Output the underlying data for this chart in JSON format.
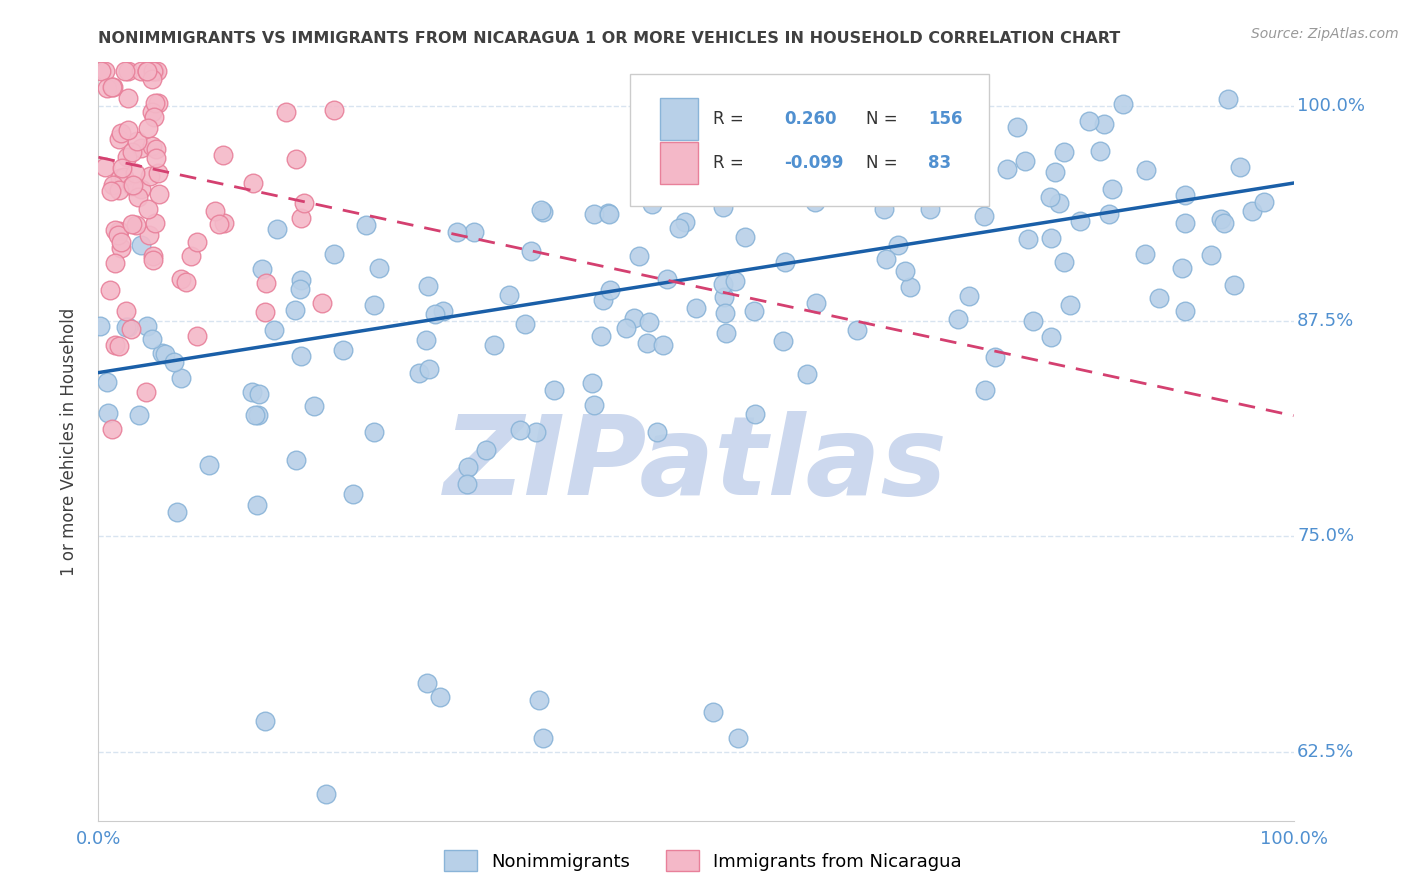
{
  "title": "NONIMMIGRANTS VS IMMIGRANTS FROM NICARAGUA 1 OR MORE VEHICLES IN HOUSEHOLD CORRELATION CHART",
  "source": "Source: ZipAtlas.com",
  "ylabel": "1 or more Vehicles in Household",
  "xlim": [
    0.0,
    1.0
  ],
  "ylim": [
    0.585,
    1.025
  ],
  "yticks": [
    0.625,
    0.75,
    0.875,
    1.0
  ],
  "ytick_labels": [
    "62.5%",
    "75.0%",
    "87.5%",
    "100.0%"
  ],
  "xtick_labels": [
    "0.0%",
    "100.0%"
  ],
  "xticks": [
    0.0,
    1.0
  ],
  "blue_R": 0.26,
  "blue_N": 156,
  "pink_R": -0.099,
  "pink_N": 83,
  "legend_label_blue": "Nonimmigrants",
  "legend_label_pink": "Immigrants from Nicaragua",
  "scatter_blue_color": "#b8d0e8",
  "scatter_blue_edge": "#8ab4d8",
  "scatter_pink_color": "#f4b8c8",
  "scatter_pink_edge": "#e8809a",
  "trend_blue_color": "#1a5fa8",
  "trend_pink_color": "#d44070",
  "title_color": "#404040",
  "source_color": "#999999",
  "axis_label_color": "#404040",
  "tick_label_color": "#5090d0",
  "watermark_color": "#ccd8ee",
  "background_color": "#ffffff",
  "grid_color": "#d8e4f0",
  "blue_trend_y0": 0.845,
  "blue_trend_y1": 0.955,
  "pink_trend_y0": 0.97,
  "pink_trend_y1": 0.82
}
